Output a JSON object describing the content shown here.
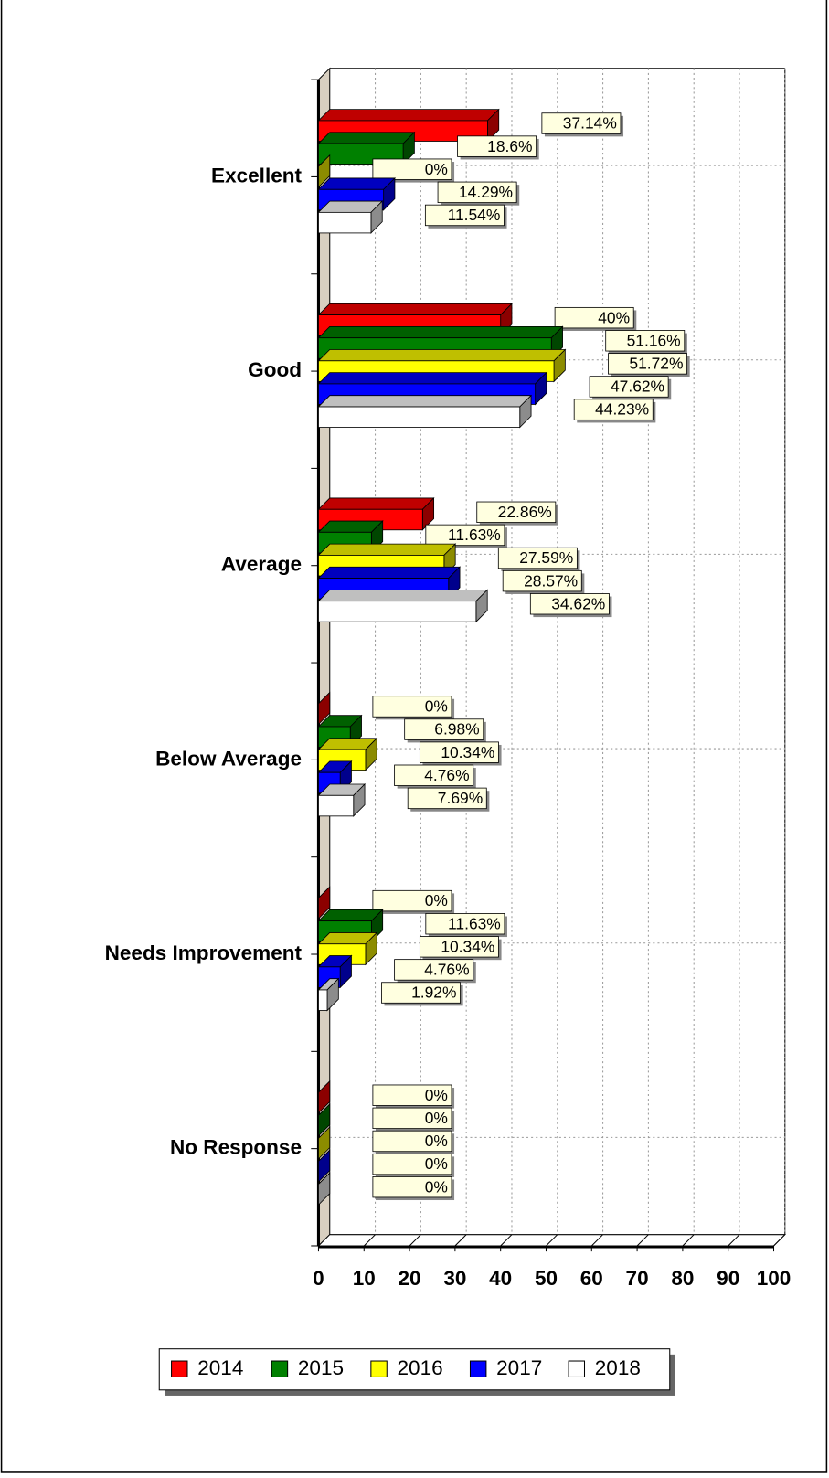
{
  "chart_data": {
    "type": "bar",
    "orientation": "horizontal",
    "categories": [
      "Excellent",
      "Good",
      "Average",
      "Below Average",
      "Needs Improvement",
      "No Response"
    ],
    "series": [
      {
        "name": "2014",
        "color": "#ff0000",
        "values": [
          37.14,
          40,
          22.86,
          0,
          0,
          0
        ],
        "value_labels": [
          "37.14%",
          "40%",
          "22.86%",
          "0%",
          "0%",
          "0%"
        ]
      },
      {
        "name": "2015",
        "color": "#008000",
        "values": [
          18.6,
          51.16,
          11.63,
          6.98,
          11.63,
          0
        ],
        "value_labels": [
          "18.6%",
          "51.16%",
          "11.63%",
          "6.98%",
          "11.63%",
          "0%"
        ]
      },
      {
        "name": "2016",
        "color": "#ffff00",
        "values": [
          0,
          51.72,
          27.59,
          10.34,
          10.34,
          0
        ],
        "value_labels": [
          "0%",
          "51.72%",
          "27.59%",
          "10.34%",
          "10.34%",
          "0%"
        ]
      },
      {
        "name": "2017",
        "color": "#0000ff",
        "values": [
          14.29,
          47.62,
          28.57,
          4.76,
          4.76,
          0
        ],
        "value_labels": [
          "14.29%",
          "47.62%",
          "28.57%",
          "4.76%",
          "4.76%",
          "0%"
        ]
      },
      {
        "name": "2018",
        "color": "#ffffff",
        "values": [
          11.54,
          44.23,
          34.62,
          7.69,
          1.92,
          0
        ],
        "value_labels": [
          "11.54%",
          "44.23%",
          "34.62%",
          "7.69%",
          "1.92%",
          "0%"
        ]
      }
    ],
    "xlim": [
      0,
      100
    ],
    "xticks": [
      0,
      10,
      20,
      30,
      40,
      50,
      60,
      70,
      80,
      90,
      100
    ],
    "grid": true,
    "legend": "bottom"
  }
}
